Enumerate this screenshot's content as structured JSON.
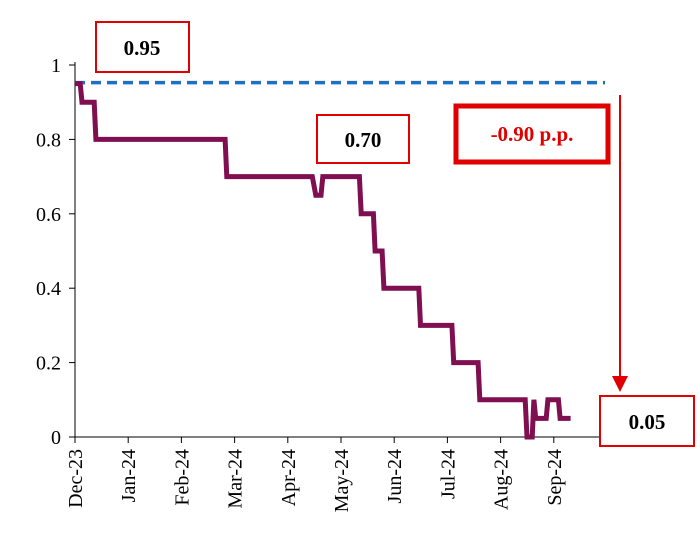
{
  "chart_data": {
    "type": "line",
    "title": "",
    "xlabel": "",
    "ylabel": "",
    "ylim": [
      0,
      1
    ],
    "y_ticks": [
      "0",
      "0.2",
      "0.4",
      "0.6",
      "0.8",
      "1"
    ],
    "x_ticks": [
      "Dec-23",
      "Jan-24",
      "Feb-24",
      "Mar-24",
      "Apr-24",
      "May-24",
      "Jun-24",
      "Jul-24",
      "Aug-24",
      "Sep-24"
    ],
    "grid": false,
    "legend": "none",
    "reference_line": {
      "value": 0.95,
      "color": "#1f6fc5",
      "style": "dashed"
    },
    "series": [
      {
        "color": "#7f0f50",
        "points": [
          [
            "2023-12-01",
            0.95
          ],
          [
            "2023-12-04",
            0.95
          ],
          [
            "2023-12-05",
            0.9
          ],
          [
            "2023-12-12",
            0.9
          ],
          [
            "2023-12-13",
            0.8
          ],
          [
            "2024-02-25",
            0.8
          ],
          [
            "2024-02-26",
            0.7
          ],
          [
            "2024-04-15",
            0.7
          ],
          [
            "2024-04-17",
            0.65
          ],
          [
            "2024-04-20",
            0.65
          ],
          [
            "2024-04-21",
            0.7
          ],
          [
            "2024-05-12",
            0.7
          ],
          [
            "2024-05-13",
            0.6
          ],
          [
            "2024-05-20",
            0.6
          ],
          [
            "2024-05-21",
            0.5
          ],
          [
            "2024-05-25",
            0.5
          ],
          [
            "2024-05-26",
            0.4
          ],
          [
            "2024-06-15",
            0.4
          ],
          [
            "2024-06-16",
            0.3
          ],
          [
            "2024-07-04",
            0.3
          ],
          [
            "2024-07-05",
            0.2
          ],
          [
            "2024-07-19",
            0.2
          ],
          [
            "2024-07-20",
            0.1
          ],
          [
            "2024-08-15",
            0.1
          ],
          [
            "2024-08-16",
            0.0
          ],
          [
            "2024-08-19",
            0.0
          ],
          [
            "2024-08-20",
            0.1
          ],
          [
            "2024-08-21",
            0.05
          ],
          [
            "2024-08-27",
            0.05
          ],
          [
            "2024-08-28",
            0.1
          ],
          [
            "2024-09-03",
            0.1
          ],
          [
            "2024-09-04",
            0.05
          ],
          [
            "2024-09-10",
            0.05
          ]
        ]
      }
    ],
    "annotations": [
      {
        "label": "0.95",
        "style": "box"
      },
      {
        "label": "0.70",
        "style": "box"
      },
      {
        "label": "-0.90 p.p.",
        "style": "box-thick",
        "color": "#e00000"
      },
      {
        "label": "0.05",
        "style": "box"
      }
    ],
    "arrow_color": "#e00000"
  }
}
